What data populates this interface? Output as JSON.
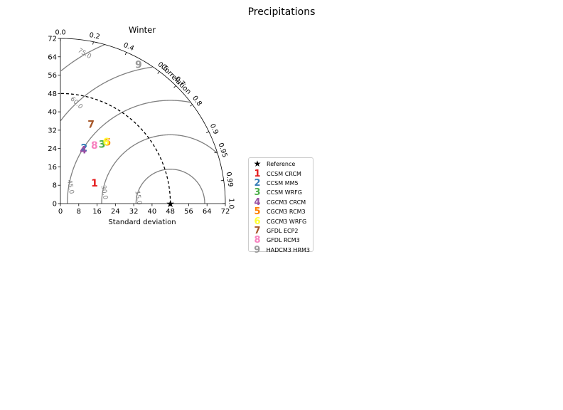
{
  "figure": {
    "suptitle": "Precipitations"
  },
  "chart_data": {
    "type": "scatter",
    "diagram": "taylor",
    "title": "Winter",
    "xlabel": "Standard deviation",
    "arc_label": "Correlation",
    "std_ticks": [
      "0",
      "8",
      "16",
      "24",
      "32",
      "40",
      "48",
      "56",
      "64",
      "72"
    ],
    "std_range": [
      0,
      72
    ],
    "correlation_ticks": [
      {
        "value": 0.0,
        "label": "0.0"
      },
      {
        "value": 0.2,
        "label": "0.2"
      },
      {
        "value": 0.4,
        "label": "0.4"
      },
      {
        "value": 0.6,
        "label": "0.6"
      },
      {
        "value": 0.7,
        "label": "0.7"
      },
      {
        "value": 0.8,
        "label": "0.8"
      },
      {
        "value": 0.9,
        "label": "0.9"
      },
      {
        "value": 0.95,
        "label": "0.95"
      },
      {
        "value": 0.99,
        "label": "0.99"
      },
      {
        "value": 1.0,
        "label": "1.0"
      }
    ],
    "rms_contours": [
      {
        "value": 15,
        "label": "15.0"
      },
      {
        "value": 30,
        "label": "30.0"
      },
      {
        "value": 45,
        "label": "45.0"
      },
      {
        "value": 60,
        "label": "60.0"
      },
      {
        "value": 75,
        "label": "75.0"
      }
    ],
    "reference": {
      "label": "Reference",
      "std": 48,
      "correlation": 1.0
    },
    "models": [
      {
        "marker": "1",
        "name": "CCSM CRCM",
        "std": 17.4,
        "correlation": 0.856,
        "color": "#e41a1c"
      },
      {
        "marker": "2",
        "name": "CCSM MM5",
        "std": 26.5,
        "correlation": 0.391,
        "color": "#377eb8"
      },
      {
        "marker": "3",
        "name": "CCSM WRFG",
        "std": 31.7,
        "correlation": 0.574,
        "color": "#4daf4a"
      },
      {
        "marker": "4",
        "name": "CGCM3 CRCM",
        "std": 25.5,
        "correlation": 0.392,
        "color": "#984ea3"
      },
      {
        "marker": "5",
        "name": "CGCM3 RCM3",
        "std": 33.8,
        "correlation": 0.609,
        "color": "#ff7f00"
      },
      {
        "marker": "6",
        "name": "CGCM3 WRFG",
        "std": 33.6,
        "correlation": 0.595,
        "color": "#ffff33"
      },
      {
        "marker": "7",
        "name": "GFDL ECP2",
        "std": 37.1,
        "correlation": 0.361,
        "color": "#a65628"
      },
      {
        "marker": "8",
        "name": "GFDL RCM3",
        "std": 29.4,
        "correlation": 0.505,
        "color": "#f781bf"
      },
      {
        "marker": "9",
        "name": "HADCM3 HRM3",
        "std": 69.6,
        "correlation": 0.49,
        "color": "#999999"
      }
    ]
  }
}
